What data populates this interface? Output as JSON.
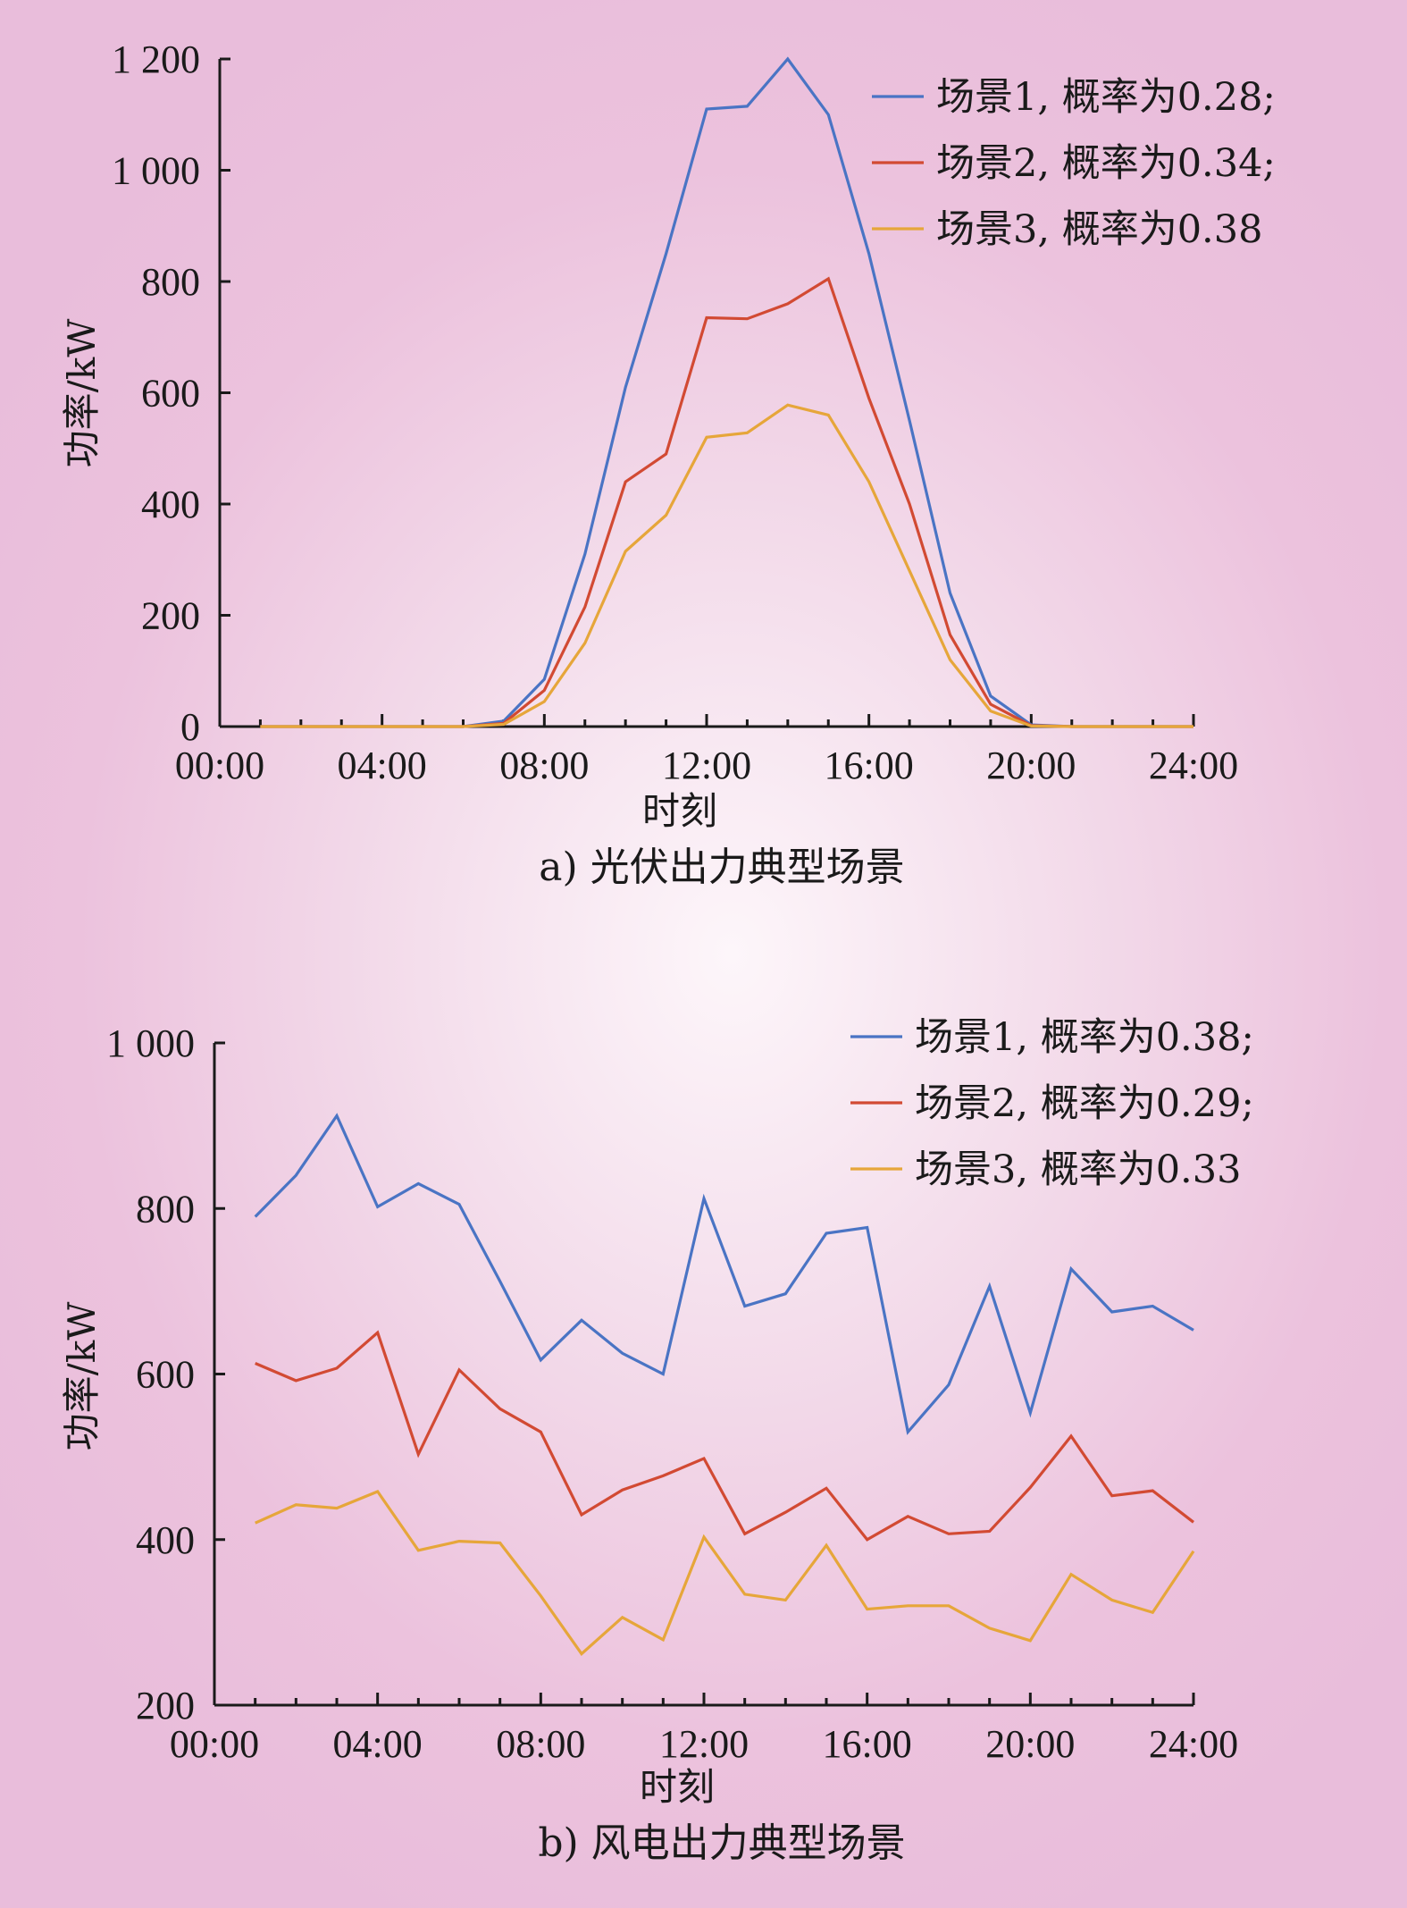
{
  "colors": {
    "series1": "#4a74c4",
    "series2": "#d24a33",
    "series3": "#e6a63a",
    "axis": "#1a1a1a"
  },
  "chart_data": [
    {
      "type": "line",
      "caption": "a) 光伏出力典型场景",
      "xlabel": "时刻",
      "ylabel": "功率/kW",
      "xlim": [
        0,
        24
      ],
      "ylim": [
        0,
        1200
      ],
      "xtick_labels": [
        "00:00",
        "04:00",
        "08:00",
        "12:00",
        "16:00",
        "20:00",
        "24:00"
      ],
      "ytick_labels": [
        "0",
        "200",
        "400",
        "600",
        "800",
        "1 000",
        "1 200"
      ],
      "x": [
        1,
        2,
        3,
        4,
        5,
        6,
        7,
        8,
        9,
        10,
        11,
        12,
        13,
        14,
        15,
        16,
        17,
        18,
        19,
        20,
        21,
        22,
        23,
        24
      ],
      "series": [
        {
          "name": "场景1, 概率为0.28;",
          "values": [
            0,
            0,
            0,
            0,
            0,
            0,
            10,
            85,
            310,
            610,
            850,
            1110,
            1115,
            1200,
            1100,
            850,
            550,
            240,
            55,
            3,
            0,
            0,
            0,
            0
          ]
        },
        {
          "name": "场景2, 概率为0.34;",
          "values": [
            0,
            0,
            0,
            0,
            0,
            0,
            6,
            65,
            215,
            440,
            490,
            735,
            733,
            760,
            805,
            590,
            400,
            165,
            40,
            2,
            0,
            0,
            0,
            0
          ]
        },
        {
          "name": "场景3, 概率为0.38",
          "values": [
            0,
            0,
            0,
            0,
            0,
            0,
            4,
            45,
            150,
            315,
            380,
            520,
            528,
            578,
            560,
            440,
            280,
            120,
            28,
            1,
            0,
            0,
            0,
            0
          ]
        }
      ]
    },
    {
      "type": "line",
      "caption": "b) 风电出力典型场景",
      "xlabel": "时刻",
      "ylabel": "功率/kW",
      "xlim": [
        0,
        24
      ],
      "ylim": [
        200,
        1000
      ],
      "xtick_labels": [
        "00:00",
        "04:00",
        "08:00",
        "12:00",
        "16:00",
        "20:00",
        "24:00"
      ],
      "ytick_labels": [
        "200",
        "400",
        "600",
        "800",
        "1 000"
      ],
      "x": [
        1,
        2,
        3,
        4,
        5,
        6,
        7,
        8,
        9,
        10,
        11,
        12,
        13,
        14,
        15,
        16,
        17,
        18,
        19,
        20,
        21,
        22,
        23,
        24
      ],
      "series": [
        {
          "name": "场景1, 概率为0.38;",
          "values": [
            790,
            840,
            912,
            802,
            830,
            805,
            712,
            617,
            665,
            625,
            600,
            812,
            682,
            697,
            770,
            777,
            530,
            587,
            706,
            553,
            727,
            675,
            682,
            653
          ]
        },
        {
          "name": "场景2, 概率为0.29;",
          "values": [
            613,
            592,
            607,
            650,
            503,
            605,
            558,
            530,
            430,
            460,
            477,
            498,
            407,
            433,
            462,
            400,
            428,
            407,
            410,
            463,
            525,
            453,
            459,
            421
          ]
        },
        {
          "name": "场景3, 概率为0.33",
          "values": [
            420,
            442,
            438,
            458,
            387,
            398,
            396,
            332,
            262,
            306,
            279,
            403,
            334,
            327,
            393,
            316,
            320,
            320,
            293,
            278,
            358,
            327,
            312,
            386
          ]
        }
      ]
    }
  ]
}
